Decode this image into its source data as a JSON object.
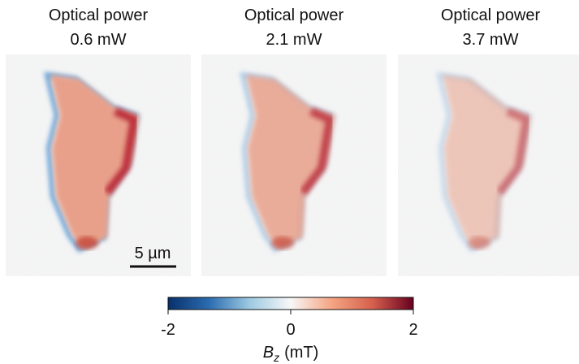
{
  "panels": [
    {
      "title": "Optical power",
      "power": "0.6 mW"
    },
    {
      "title": "Optical power",
      "power": "2.1 mW"
    },
    {
      "title": "Optical power",
      "power": "3.7 mW"
    }
  ],
  "scale_bar": "5 µm",
  "colorbar": {
    "label_symbol": "B",
    "label_subscript": "z",
    "label_unit": "(mT)",
    "lim": [
      -2,
      2
    ],
    "ticks": [
      -2,
      0,
      2
    ],
    "colors": [
      "#08306b",
      "#2b6cb0",
      "#9ecae1",
      "#f7f7f7",
      "#f4a582",
      "#d6604d",
      "#67001f"
    ]
  }
}
